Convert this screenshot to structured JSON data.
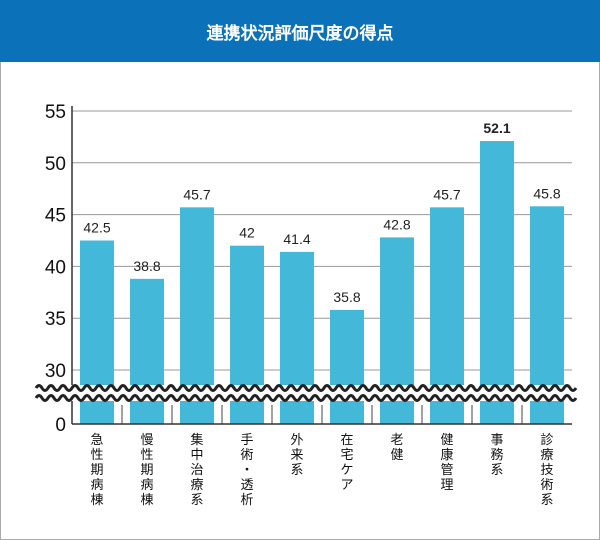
{
  "chart_data": {
    "type": "bar",
    "title": "連携状況評価尺度の得点",
    "categories": [
      "急性期病棟",
      "慢性期病棟",
      "集中治療系",
      "手術・透析",
      "外来系",
      "在宅ケア",
      "老健",
      "健康管理",
      "事務系",
      "診療技術系"
    ],
    "values": [
      42.5,
      38.8,
      45.7,
      42,
      41.4,
      35.8,
      42.8,
      45.7,
      52.1,
      45.8
    ],
    "value_labels": [
      "42.5",
      "38.8",
      "45.7",
      "42",
      "41.4",
      "35.8",
      "42.8",
      "45.7",
      "52.1",
      "45.8"
    ],
    "highlight_index": 8,
    "yticks": [
      "30",
      "35",
      "40",
      "45",
      "50",
      "55"
    ],
    "ytick_values": [
      30,
      35,
      40,
      45,
      50,
      55
    ],
    "y_zero_label": "0",
    "ylim": [
      0,
      55
    ],
    "axis_break": [
      0,
      29
    ],
    "xlabel": "",
    "ylabel": "",
    "grid": true,
    "bar_color": "#44b8d8",
    "header_color": "#0b72b9"
  }
}
